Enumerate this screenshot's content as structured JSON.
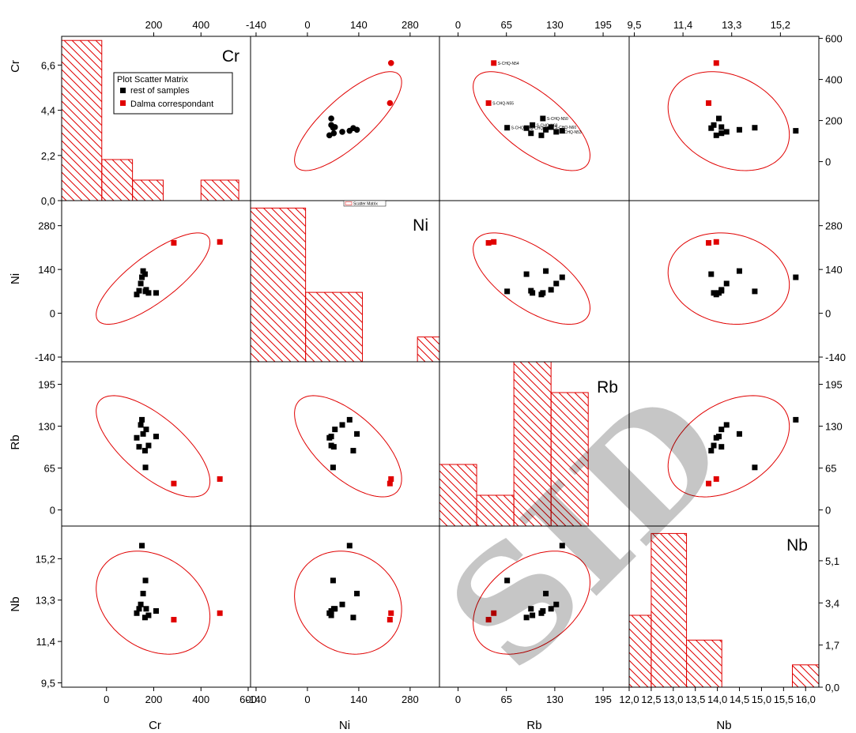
{
  "colors": {
    "sample": "#000000",
    "dalma": "#e00000",
    "ellipse": "#e00000",
    "hist": "#e00000",
    "grid": "#000000"
  },
  "legend": {
    "title": "Plot Scatter Matrix",
    "items": [
      {
        "label": "rest of samples",
        "color": "#000000"
      },
      {
        "label": "Dalma correspondant",
        "color": "#e00000"
      }
    ]
  },
  "mini_legend": "Scatter Matrix",
  "watermark": "SID",
  "chart_data": {
    "type": "scatter",
    "variables": [
      "Cr",
      "Ni",
      "Rb",
      "Nb"
    ],
    "axes": {
      "Cr": {
        "range": [
          -190,
          610
        ],
        "ticks": [
          0,
          200,
          400,
          600
        ],
        "top_ticks": [
          "200",
          "400"
        ],
        "bottom_ticks": [
          "0",
          "200",
          "400",
          "600"
        ]
      },
      "Ni": {
        "range": [
          -155,
          360
        ],
        "ticks": [
          -140,
          0,
          140,
          280
        ],
        "labels": [
          "-140",
          "0",
          "140",
          "280"
        ]
      },
      "Rb": {
        "range": [
          -25,
          230
        ],
        "ticks": [
          0,
          65,
          130,
          195
        ],
        "labels": [
          "0",
          "65",
          "130",
          "195"
        ]
      },
      "Nb": {
        "range": [
          9.3,
          16.7
        ],
        "ticks": [
          9.5,
          11.4,
          13.3,
          15.2
        ],
        "labels": [
          "9,5",
          "11,4",
          "13,3",
          "15,2"
        ],
        "top_labels": [
          "9,5",
          "11,4",
          "13,3",
          "15,2"
        ]
      }
    },
    "hist_x_axes": {
      "Cr": {
        "range": [
          -190,
          610
        ],
        "ticks": [
          0,
          200,
          400,
          600
        ],
        "labels": [
          "0",
          "200",
          "400",
          "600"
        ]
      },
      "Ni": {
        "range": [
          -155,
          360
        ],
        "ticks": [
          -140,
          0,
          140,
          280
        ],
        "labels": [
          "-140",
          "0",
          "140",
          "280"
        ]
      },
      "Rb": {
        "range": [
          -25,
          230
        ],
        "ticks": [
          0,
          65,
          130,
          195
        ],
        "labels": [
          "0",
          "65",
          "130",
          "195"
        ]
      },
      "Nb": {
        "range": [
          12.0,
          16.3
        ],
        "ticks": [
          12.0,
          12.5,
          13.0,
          13.5,
          14.0,
          14.5,
          15.0,
          15.5,
          16.0
        ],
        "labels": [
          "12,0",
          "12,5",
          "13,0",
          "13,5",
          "14,0",
          "14,5",
          "15,0",
          "15,5",
          "16,0"
        ]
      }
    },
    "hist_count_axes": {
      "Cr": {
        "range": [
          0,
          8.0
        ],
        "ticks": [
          0,
          2.2,
          4.4,
          6.6
        ],
        "labels": [
          "0,0",
          "2,2",
          "4,4",
          "6,6"
        ]
      },
      "Nb": {
        "range": [
          0,
          6.5
        ],
        "ticks": [
          0,
          1.7,
          3.4,
          5.1
        ],
        "labels": [
          "0,0",
          "1,7",
          "3,4",
          "5,1"
        ]
      }
    },
    "right_axes": {
      "Cr": {
        "ticks": [
          0,
          200,
          400,
          600
        ],
        "labels": [
          "0",
          "200",
          "400",
          "600"
        ]
      },
      "Ni": {
        "ticks": [
          -140,
          0,
          140,
          280
        ],
        "labels": [
          "-140",
          "0",
          "140",
          "280"
        ]
      },
      "Rb": {
        "ticks": [
          0,
          65,
          130,
          195
        ],
        "labels": [
          "0",
          "65",
          "130",
          "195"
        ]
      },
      "Nb": {
        "ticks": [
          0,
          1.7,
          3.4,
          5.1
        ],
        "labels": [
          "0,0",
          "1,7",
          "3,4",
          "5,1"
        ]
      }
    },
    "histograms": {
      "Cr": {
        "bins": [
          [
            -190,
            -20
          ],
          [
            -20,
            110
          ],
          [
            110,
            240
          ],
          [
            400,
            560
          ]
        ],
        "counts": [
          7.8,
          2.0,
          1.0,
          1.0
        ]
      },
      "Ni": {
        "bins": [
          [
            -155,
            -5
          ],
          [
            -5,
            150
          ],
          [
            300,
            455
          ]
        ],
        "counts": [
          6.2,
          2.8,
          1.0
        ]
      },
      "Rb": {
        "bins": [
          [
            -25,
            25
          ],
          [
            25,
            75
          ],
          [
            75,
            125
          ],
          [
            125,
            175
          ]
        ],
        "counts": [
          3.0,
          1.5,
          8.0,
          6.5
        ]
      },
      "Nb": {
        "bins": [
          [
            12.0,
            12.5
          ],
          [
            12.5,
            13.3
          ],
          [
            13.3,
            14.1
          ],
          [
            15.7,
            16.5
          ]
        ],
        "counts": [
          2.9,
          6.2,
          1.9,
          0.9
        ]
      }
    },
    "samples": [
      {
        "Cr": 128,
        "Ni": 60,
        "Rb": 112,
        "Nb": 12.7
      },
      {
        "Cr": 138,
        "Ni": 72,
        "Rb": 98,
        "Nb": 12.9
      },
      {
        "Cr": 145,
        "Ni": 95,
        "Rb": 132,
        "Nb": 13.1
      },
      {
        "Cr": 150,
        "Ni": 115,
        "Rb": 140,
        "Nb": 15.8
      },
      {
        "Cr": 155,
        "Ni": 135,
        "Rb": 118,
        "Nb": 13.6
      },
      {
        "Cr": 163,
        "Ni": 125,
        "Rb": 92,
        "Nb": 12.5
      },
      {
        "Cr": 165,
        "Ni": 70,
        "Rb": 66,
        "Nb": 14.2
      },
      {
        "Cr": 178,
        "Ni": 65,
        "Rb": 100,
        "Nb": 12.6
      },
      {
        "Cr": 168,
        "Ni": 75,
        "Rb": 125,
        "Nb": 12.9
      },
      {
        "Cr": 210,
        "Ni": 65,
        "Rb": 114,
        "Nb": 12.8
      }
    ],
    "dalma": [
      {
        "Cr": 285,
        "Ni": 225,
        "Rb": 41,
        "Nb": 12.4
      },
      {
        "Cr": 480,
        "Ni": 228,
        "Rb": 48,
        "Nb": 12.7
      }
    ],
    "point_labels": [
      "S-CHQ-N55",
      "S-CHQ-N54",
      "S-CHQ-N67",
      "S-CHQ-N52",
      "S-CHQ-N68",
      "S-CHQ-N60",
      "S-CHQ-N50",
      "S-CHQ-N53"
    ]
  }
}
